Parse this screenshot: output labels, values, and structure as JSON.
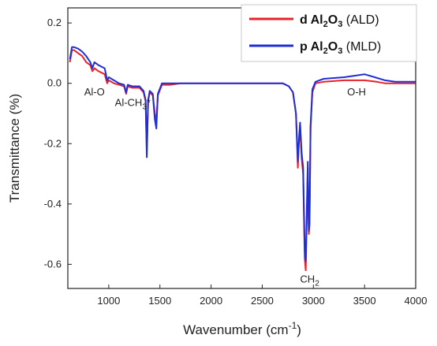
{
  "chart_data": {
    "type": "line",
    "xlabel": "Wavenumber (cm-1)",
    "xlabel_main": "Wavenumber (cm",
    "xlabel_sup": "-1",
    "xlabel_close": ")",
    "ylabel": "Transmittance (%)",
    "xlim": [
      600,
      4000
    ],
    "ylim": [
      -0.68,
      0.25
    ],
    "xticks": [
      1000,
      1500,
      2000,
      2500,
      3000,
      3500,
      4000
    ],
    "xtick_labels": [
      "1000",
      "1500",
      "2000",
      "2500",
      "3000",
      "3500",
      "4000"
    ],
    "yticks": [
      0.2,
      0.0,
      -0.2,
      -0.4,
      -0.6
    ],
    "ytick_labels": [
      "0.2",
      "0.0",
      "-0.2",
      "-0.4",
      "-0.6"
    ],
    "grid": false,
    "legend_position": "top-right",
    "series": [
      {
        "name": "d Al2O3 (ALD)",
        "legend_bold": "d Al",
        "legend_sub1": "2",
        "legend_mid": "O",
        "legend_sub2": "3",
        "legend_rest": " (ALD)",
        "color": "#e8222a",
        "points": [
          [
            620,
            0.07
          ],
          [
            640,
            0.11
          ],
          [
            660,
            0.11
          ],
          [
            700,
            0.1
          ],
          [
            740,
            0.09
          ],
          [
            780,
            0.07
          ],
          [
            820,
            0.06
          ],
          [
            840,
            0.04
          ],
          [
            860,
            0.05
          ],
          [
            900,
            0.04
          ],
          [
            960,
            0.03
          ],
          [
            985,
            0.0
          ],
          [
            1000,
            0.01
          ],
          [
            1050,
            0.0
          ],
          [
            1100,
            -0.005
          ],
          [
            1150,
            -0.01
          ],
          [
            1170,
            -0.035
          ],
          [
            1185,
            -0.01
          ],
          [
            1230,
            -0.015
          ],
          [
            1300,
            -0.015
          ],
          [
            1340,
            -0.03
          ],
          [
            1360,
            -0.06
          ],
          [
            1372,
            -0.22
          ],
          [
            1385,
            -0.06
          ],
          [
            1400,
            -0.03
          ],
          [
            1430,
            -0.04
          ],
          [
            1450,
            -0.1
          ],
          [
            1465,
            -0.13
          ],
          [
            1480,
            -0.04
          ],
          [
            1520,
            -0.005
          ],
          [
            1600,
            -0.005
          ],
          [
            1700,
            0.0
          ],
          [
            1800,
            0.0
          ],
          [
            1900,
            0.0
          ],
          [
            2000,
            0.0
          ],
          [
            2100,
            0.0
          ],
          [
            2200,
            0.0
          ],
          [
            2300,
            0.0
          ],
          [
            2400,
            0.0
          ],
          [
            2500,
            0.0
          ],
          [
            2600,
            0.0
          ],
          [
            2700,
            0.0
          ],
          [
            2760,
            -0.01
          ],
          [
            2800,
            -0.03
          ],
          [
            2830,
            -0.1
          ],
          [
            2848,
            -0.28
          ],
          [
            2858,
            -0.2
          ],
          [
            2870,
            -0.14
          ],
          [
            2885,
            -0.25
          ],
          [
            2900,
            -0.3
          ],
          [
            2915,
            -0.58
          ],
          [
            2925,
            -0.62
          ],
          [
            2935,
            -0.45
          ],
          [
            2945,
            -0.28
          ],
          [
            2955,
            -0.5
          ],
          [
            2962,
            -0.47
          ],
          [
            2972,
            -0.15
          ],
          [
            2990,
            -0.03
          ],
          [
            3020,
            0.0
          ],
          [
            3100,
            0.005
          ],
          [
            3300,
            0.01
          ],
          [
            3500,
            0.01
          ],
          [
            3620,
            0.005
          ],
          [
            3700,
            0.0
          ],
          [
            3800,
            0.0
          ],
          [
            4000,
            0.0
          ]
        ]
      },
      {
        "name": "p Al2O3 (MLD)",
        "legend_bold": "p Al",
        "legend_sub1": "2",
        "legend_mid": "O",
        "legend_sub2": "3",
        "legend_rest": " (MLD)",
        "color": "#1f2fd6",
        "points": [
          [
            620,
            0.08
          ],
          [
            640,
            0.12
          ],
          [
            660,
            0.12
          ],
          [
            700,
            0.115
          ],
          [
            740,
            0.105
          ],
          [
            780,
            0.09
          ],
          [
            820,
            0.07
          ],
          [
            840,
            0.05
          ],
          [
            860,
            0.07
          ],
          [
            900,
            0.06
          ],
          [
            960,
            0.05
          ],
          [
            985,
            0.01
          ],
          [
            1000,
            0.02
          ],
          [
            1050,
            0.01
          ],
          [
            1100,
            0.0
          ],
          [
            1150,
            -0.005
          ],
          [
            1170,
            -0.03
          ],
          [
            1185,
            -0.005
          ],
          [
            1230,
            -0.01
          ],
          [
            1300,
            -0.01
          ],
          [
            1340,
            -0.025
          ],
          [
            1360,
            -0.055
          ],
          [
            1372,
            -0.245
          ],
          [
            1385,
            -0.055
          ],
          [
            1400,
            -0.025
          ],
          [
            1430,
            -0.035
          ],
          [
            1450,
            -0.12
          ],
          [
            1465,
            -0.15
          ],
          [
            1480,
            -0.035
          ],
          [
            1520,
            0.0
          ],
          [
            1600,
            0.0
          ],
          [
            1700,
            0.0
          ],
          [
            1800,
            0.0
          ],
          [
            1900,
            0.0
          ],
          [
            2000,
            0.0
          ],
          [
            2100,
            0.0
          ],
          [
            2200,
            0.0
          ],
          [
            2300,
            0.0
          ],
          [
            2400,
            0.0
          ],
          [
            2500,
            0.0
          ],
          [
            2600,
            0.0
          ],
          [
            2700,
            0.0
          ],
          [
            2760,
            -0.01
          ],
          [
            2800,
            -0.03
          ],
          [
            2830,
            -0.1
          ],
          [
            2848,
            -0.26
          ],
          [
            2858,
            -0.19
          ],
          [
            2870,
            -0.13
          ],
          [
            2885,
            -0.23
          ],
          [
            2900,
            -0.28
          ],
          [
            2915,
            -0.55
          ],
          [
            2925,
            -0.59
          ],
          [
            2935,
            -0.43
          ],
          [
            2945,
            -0.26
          ],
          [
            2955,
            -0.49
          ],
          [
            2962,
            -0.46
          ],
          [
            2972,
            -0.14
          ],
          [
            2990,
            -0.02
          ],
          [
            3020,
            0.005
          ],
          [
            3100,
            0.015
          ],
          [
            3300,
            0.02
          ],
          [
            3400,
            0.025
          ],
          [
            3500,
            0.03
          ],
          [
            3600,
            0.02
          ],
          [
            3700,
            0.01
          ],
          [
            3800,
            0.005
          ],
          [
            4000,
            0.005
          ]
        ]
      }
    ],
    "annotations": [
      {
        "text": "Al-O",
        "x": 760,
        "y": -0.04
      },
      {
        "text_main": "Al-CH",
        "text_sub": "3",
        "text_tail": "*",
        "x": 1060,
        "y": -0.075
      },
      {
        "text_main": "CH",
        "text_sub": "2",
        "x": 2870,
        "y": -0.66
      },
      {
        "text": "O-H",
        "x": 3330,
        "y": -0.04
      }
    ]
  }
}
